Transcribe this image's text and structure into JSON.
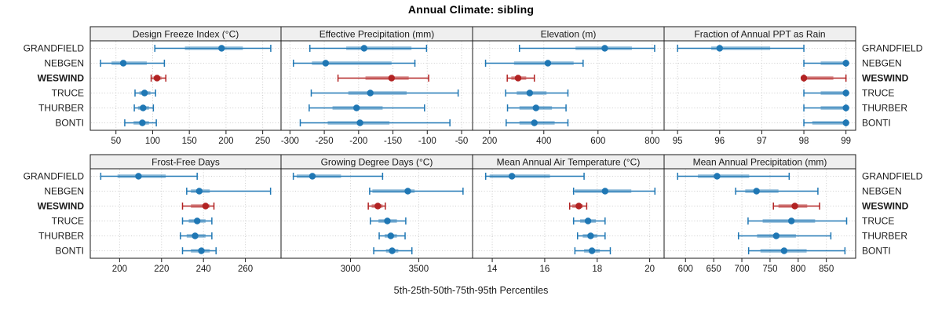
{
  "chart_data": {
    "type": "trellis-dotplot",
    "title": "Annual Climate: sibling",
    "caption": "5th-25th-50th-75th-95th Percentiles",
    "stations": [
      "GRANDFIELD",
      "NEBGEN",
      "WESWIND",
      "TRUCE",
      "THURBER",
      "BONTI"
    ],
    "highlighted_station": "WESWIND",
    "percentile_order": [
      "p5",
      "p25",
      "p50",
      "p75",
      "p95"
    ],
    "legend_position": "none",
    "grid": "dotted",
    "colors": {
      "series": "#1f77b4",
      "highlight": "#b22222",
      "band_opacity": 0.38,
      "grid_line": "#cccccc",
      "strip_bg": "#efefef",
      "border": "#1a1a1a",
      "text": "#1a1a1a"
    },
    "panels": [
      {
        "title": "Design Freeze Index (°C)",
        "grid_row": 0,
        "grid_col": 0,
        "xlim": [
          15,
          275
        ],
        "ticks": [
          50,
          100,
          150,
          200,
          250
        ],
        "values": {
          "GRANDFIELD": [
            103,
            144,
            194,
            223,
            261
          ],
          "NEBGEN": [
            29,
            44,
            60,
            92,
            116
          ],
          "WESWIND": [
            98,
            101,
            106,
            112,
            118
          ],
          "TRUCE": [
            76,
            82,
            89,
            97,
            104
          ],
          "THURBER": [
            75,
            80,
            87,
            95,
            101
          ],
          "BONTI": [
            62,
            74,
            86,
            95,
            105
          ]
        }
      },
      {
        "title": "Effective Precipitation (mm)",
        "grid_row": 0,
        "grid_col": 1,
        "xlim": [
          -313,
          -34
        ],
        "ticks": [
          -300,
          -250,
          -200,
          -150,
          -100,
          -50
        ],
        "values": {
          "GRANDFIELD": [
            -271,
            -218,
            -192,
            -123,
            -101
          ],
          "NEBGEN": [
            -295,
            -268,
            -248,
            -152,
            -118
          ],
          "WESWIND": [
            -230,
            -190,
            -152,
            -127,
            -98
          ],
          "TRUCE": [
            -269,
            -215,
            -183,
            -130,
            -55
          ],
          "THURBER": [
            -272,
            -238,
            -203,
            -165,
            -104
          ],
          "BONTI": [
            -285,
            -245,
            -198,
            -155,
            -67
          ]
        }
      },
      {
        "title": "Elevation (m)",
        "grid_row": 0,
        "grid_col": 2,
        "xlim": [
          137,
          844
        ],
        "ticks": [
          200,
          400,
          600,
          800
        ],
        "values": {
          "GRANDFIELD": [
            310,
            517,
            625,
            725,
            809
          ],
          "NEBGEN": [
            185,
            290,
            415,
            510,
            545
          ],
          "WESWIND": [
            265,
            280,
            305,
            335,
            365
          ],
          "TRUCE": [
            259,
            300,
            348,
            410,
            489
          ],
          "THURBER": [
            266,
            310,
            371,
            430,
            482
          ],
          "BONTI": [
            261,
            310,
            365,
            440,
            489
          ]
        }
      },
      {
        "title": "Fraction of Annual PPT as Rain",
        "grid_row": 0,
        "grid_col": 3,
        "xlim": [
          94.68,
          99.23
        ],
        "ticks": [
          95,
          96,
          97,
          98,
          99
        ],
        "values": {
          "GRANDFIELD": [
            95.0,
            95.8,
            96.0,
            97.2,
            98.0
          ],
          "NEBGEN": [
            98.0,
            98.4,
            99.0,
            99.0,
            99.0
          ],
          "WESWIND": [
            98.0,
            98.0,
            98.0,
            98.7,
            99.0
          ],
          "TRUCE": [
            98.0,
            98.4,
            99.0,
            99.0,
            99.0
          ],
          "THURBER": [
            98.0,
            98.4,
            99.0,
            99.0,
            99.0
          ],
          "BONTI": [
            98.0,
            98.2,
            99.0,
            99.0,
            99.0
          ]
        }
      },
      {
        "title": "Frost-Free Days",
        "grid_row": 1,
        "grid_col": 0,
        "xlim": [
          186,
          277
        ],
        "ticks": [
          200,
          220,
          240,
          260
        ],
        "values": {
          "GRANDFIELD": [
            191,
            199,
            209,
            222,
            237
          ],
          "NEBGEN": [
            232,
            234,
            238,
            243,
            272
          ],
          "WESWIND": [
            230,
            234,
            241,
            243,
            245
          ],
          "TRUCE": [
            230,
            233,
            237,
            241,
            244
          ],
          "THURBER": [
            229,
            232,
            236,
            241,
            244
          ],
          "BONTI": [
            230,
            234,
            239,
            243,
            246
          ]
        }
      },
      {
        "title": "Growing Degree Days (°C)",
        "grid_row": 1,
        "grid_col": 1,
        "xlim": [
          2490,
          3895
        ],
        "ticks": [
          3000,
          3500
        ],
        "values": {
          "GRANDFIELD": [
            2580,
            2605,
            2720,
            2930,
            3235
          ],
          "NEBGEN": [
            3140,
            3160,
            3420,
            3470,
            3825
          ],
          "WESWIND": [
            3130,
            3155,
            3200,
            3235,
            3255
          ],
          "TRUCE": [
            3145,
            3205,
            3270,
            3340,
            3405
          ],
          "THURBER": [
            3210,
            3250,
            3295,
            3340,
            3400
          ],
          "BONTI": [
            3170,
            3260,
            3305,
            3350,
            3450
          ]
        }
      },
      {
        "title": "Mean Annual Air Temperature (°C)",
        "grid_row": 1,
        "grid_col": 2,
        "xlim": [
          13.25,
          20.55
        ],
        "ticks": [
          14,
          16,
          18,
          20
        ],
        "values": {
          "GRANDFIELD": [
            13.75,
            13.9,
            14.75,
            16.2,
            17.5
          ],
          "NEBGEN": [
            17.1,
            17.15,
            18.3,
            19.3,
            20.2
          ],
          "WESWIND": [
            16.95,
            17.05,
            17.3,
            17.45,
            17.6
          ],
          "TRUCE": [
            17.1,
            17.35,
            17.65,
            17.95,
            18.3
          ],
          "THURBER": [
            17.25,
            17.45,
            17.75,
            18.0,
            18.3
          ],
          "BONTI": [
            17.15,
            17.5,
            17.8,
            18.1,
            18.5
          ]
        }
      },
      {
        "title": "Mean Annual Precipitation (mm)",
        "grid_row": 1,
        "grid_col": 3,
        "xlim": [
          562,
          902
        ],
        "ticks": [
          600,
          650,
          700,
          750,
          800,
          850
        ],
        "values": {
          "GRANDFIELD": [
            586,
            622,
            656,
            713,
            784
          ],
          "NEBGEN": [
            689,
            706,
            726,
            765,
            835
          ],
          "WESWIND": [
            756,
            765,
            794,
            816,
            838
          ],
          "TRUCE": [
            711,
            737,
            788,
            830,
            886
          ],
          "THURBER": [
            694,
            727,
            761,
            796,
            858
          ],
          "BONTI": [
            712,
            733,
            775,
            815,
            883
          ]
        }
      }
    ]
  }
}
